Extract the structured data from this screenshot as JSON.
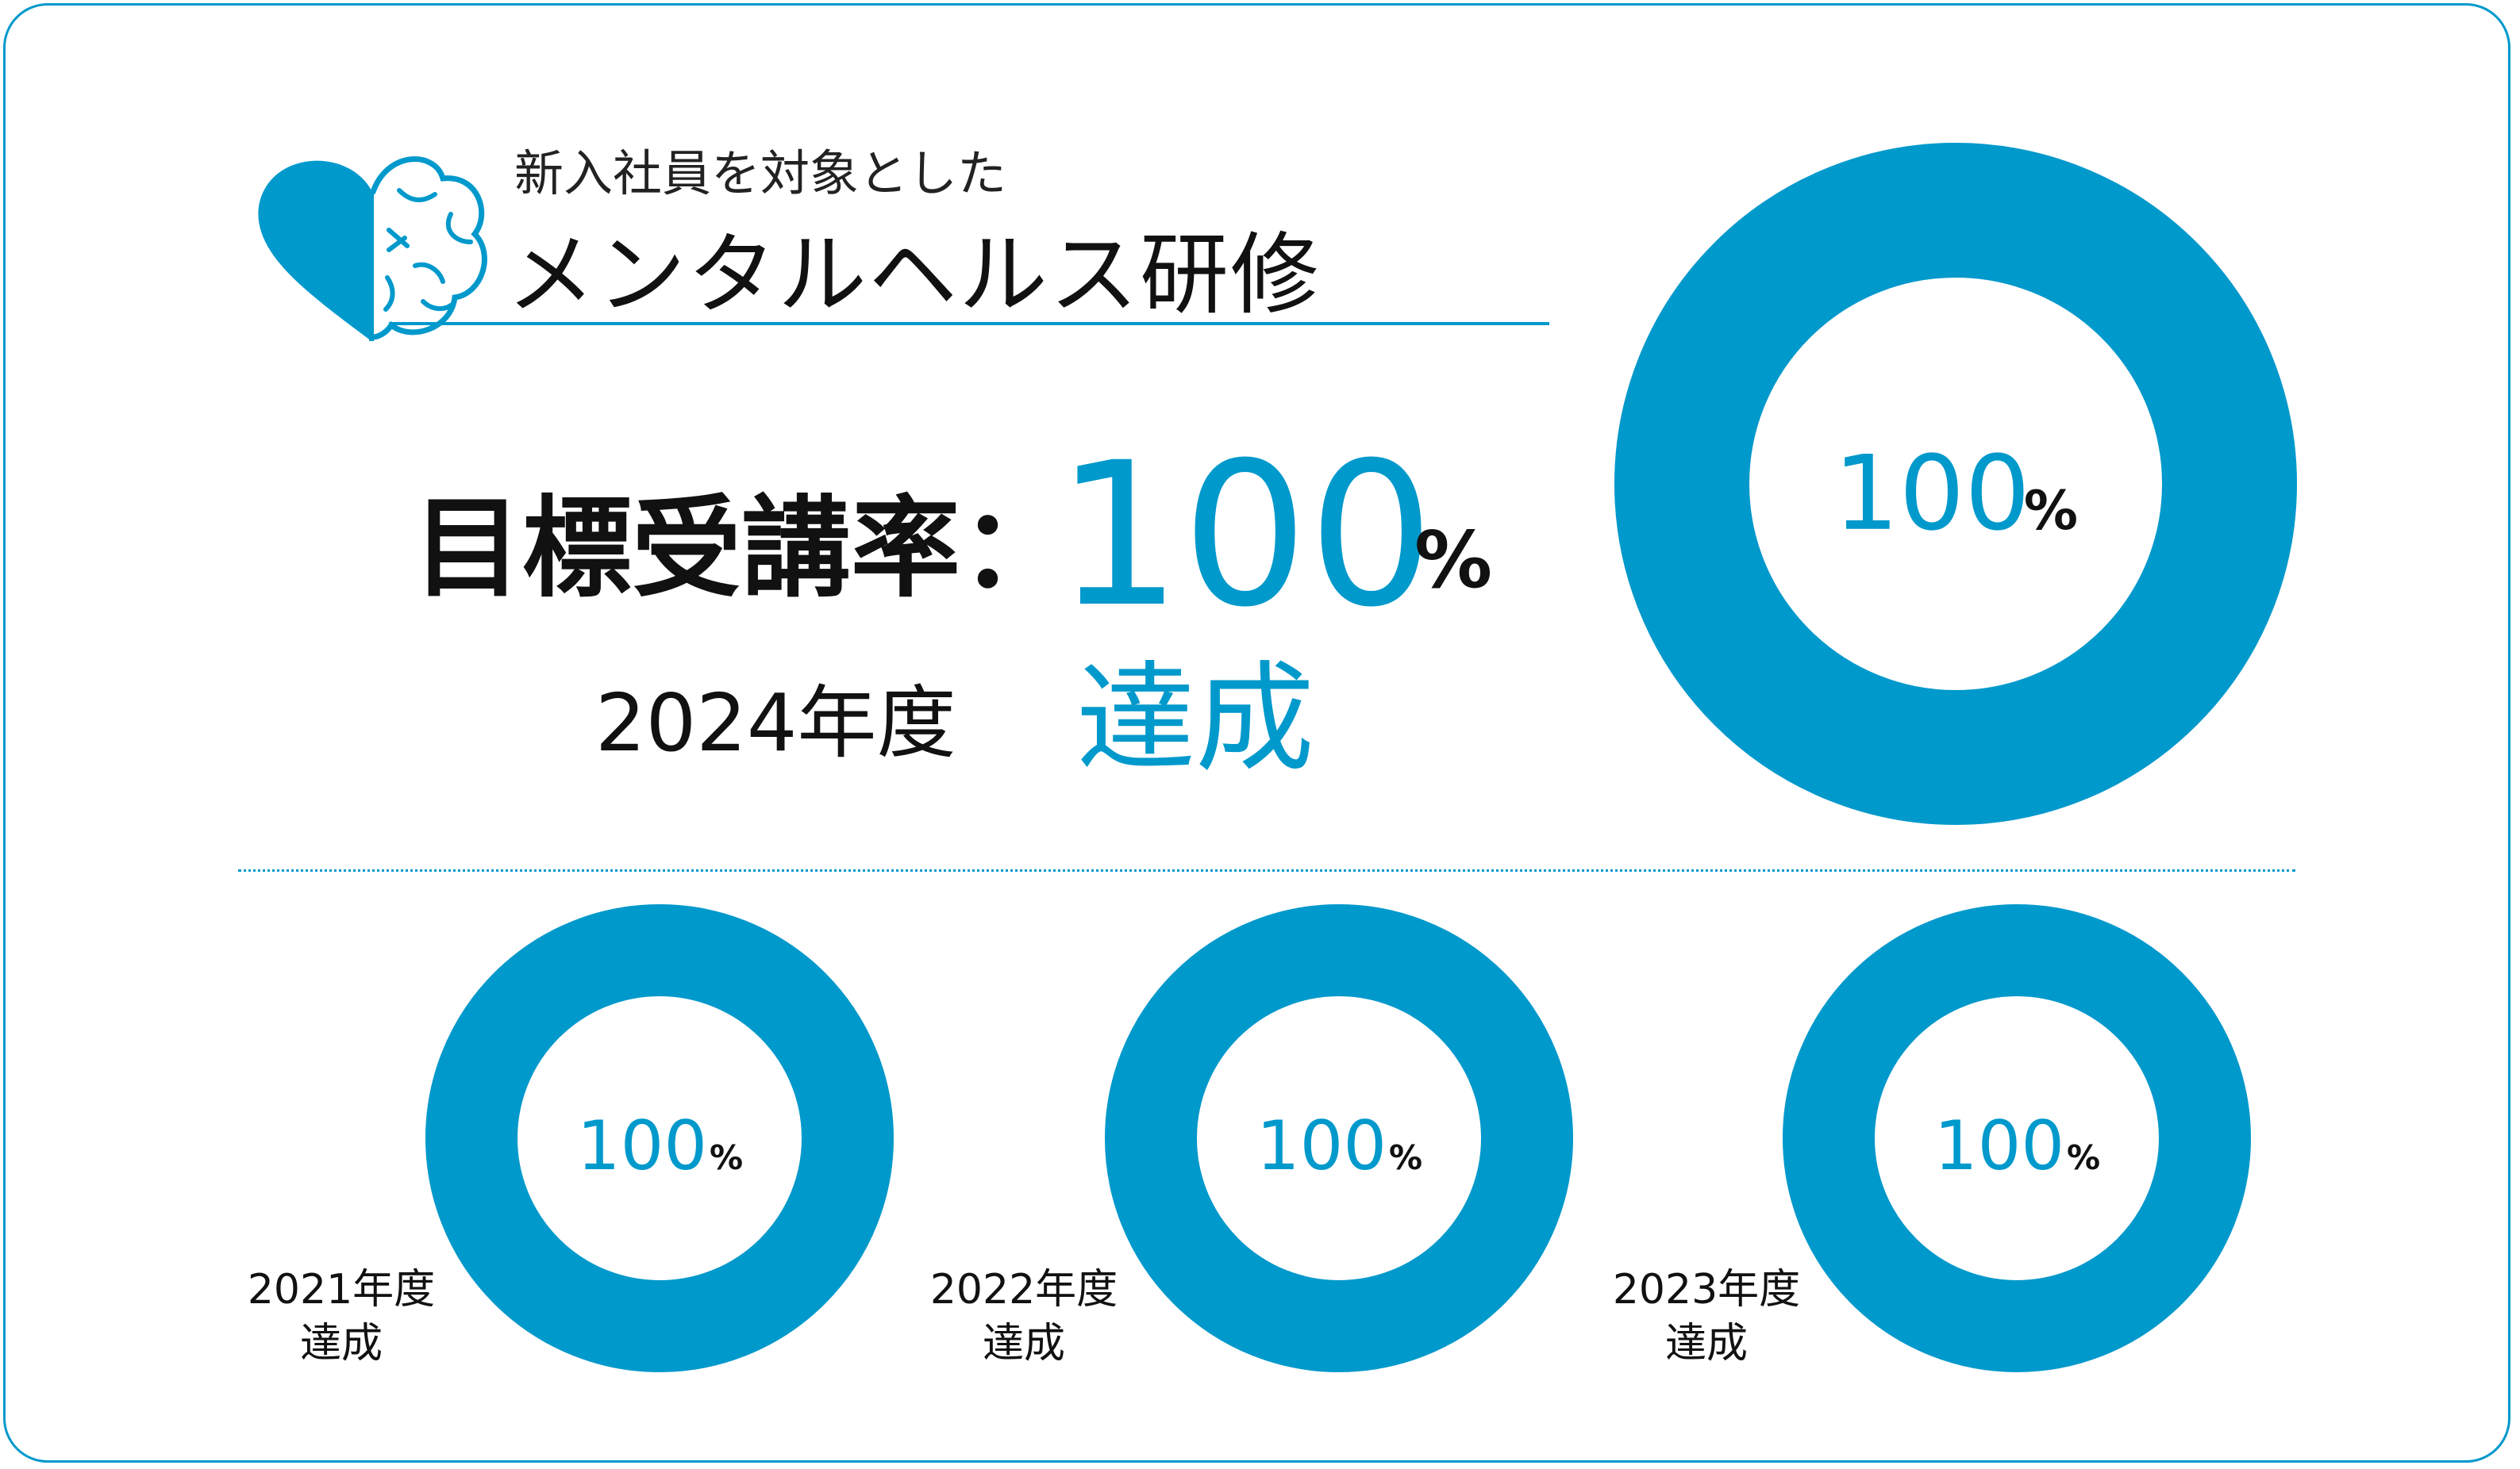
{
  "header": {
    "subtitle": "新入社員を対象とした",
    "title": "メンタルヘルス研修",
    "logo_icon": "heart-brain-icon"
  },
  "target": {
    "label": "目標受講率：",
    "value": "100",
    "unit": "%"
  },
  "current": {
    "year_label": "2024年度",
    "status": "達成"
  },
  "colors": {
    "accent": "#0099cc",
    "text": "#111111"
  },
  "chart_data": [
    {
      "type": "pie",
      "style": "donut",
      "year": "2024年度",
      "values": [
        100
      ],
      "center_label": "100",
      "unit": "%"
    },
    {
      "type": "pie",
      "style": "donut",
      "year": "2021年度",
      "status": "達成",
      "values": [
        100
      ],
      "center_label": "100",
      "unit": "%"
    },
    {
      "type": "pie",
      "style": "donut",
      "year": "2022年度",
      "status": "達成",
      "values": [
        100
      ],
      "center_label": "100",
      "unit": "%"
    },
    {
      "type": "pie",
      "style": "donut",
      "year": "2023年度",
      "status": "達成",
      "values": [
        100
      ],
      "center_label": "100",
      "unit": "%"
    }
  ]
}
